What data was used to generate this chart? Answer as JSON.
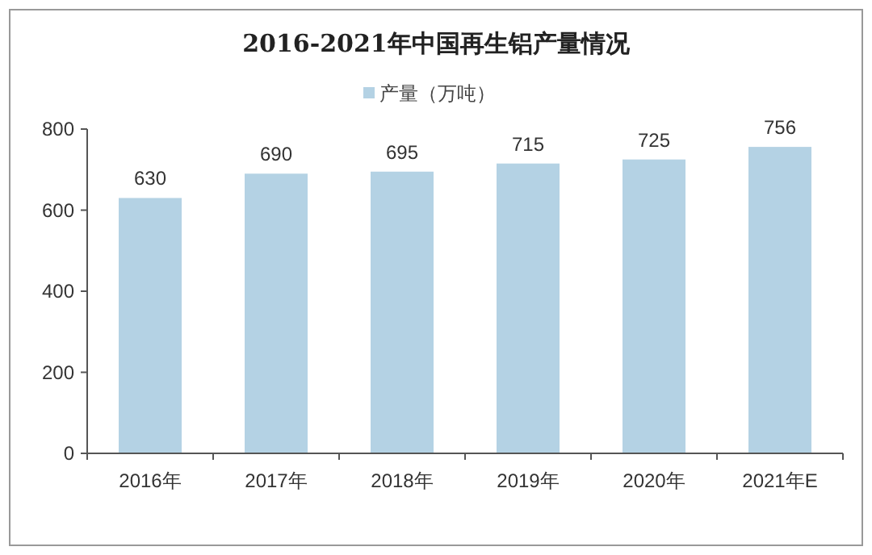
{
  "chart_data": {
    "type": "bar",
    "title": "2016-2021年中国再生铝产量情况",
    "categories": [
      "2016年",
      "2017年",
      "2018年",
      "2019年",
      "2020年",
      "2021年E"
    ],
    "series": [
      {
        "name": "产量（万吨）",
        "color": "#b4d2e4",
        "values": [
          630,
          690,
          695,
          715,
          725,
          756
        ]
      }
    ],
    "ylim": [
      0,
      800
    ],
    "yticks": [
      0,
      200,
      400,
      600,
      800
    ],
    "grid": false,
    "legend": "top",
    "data_labels": true
  }
}
